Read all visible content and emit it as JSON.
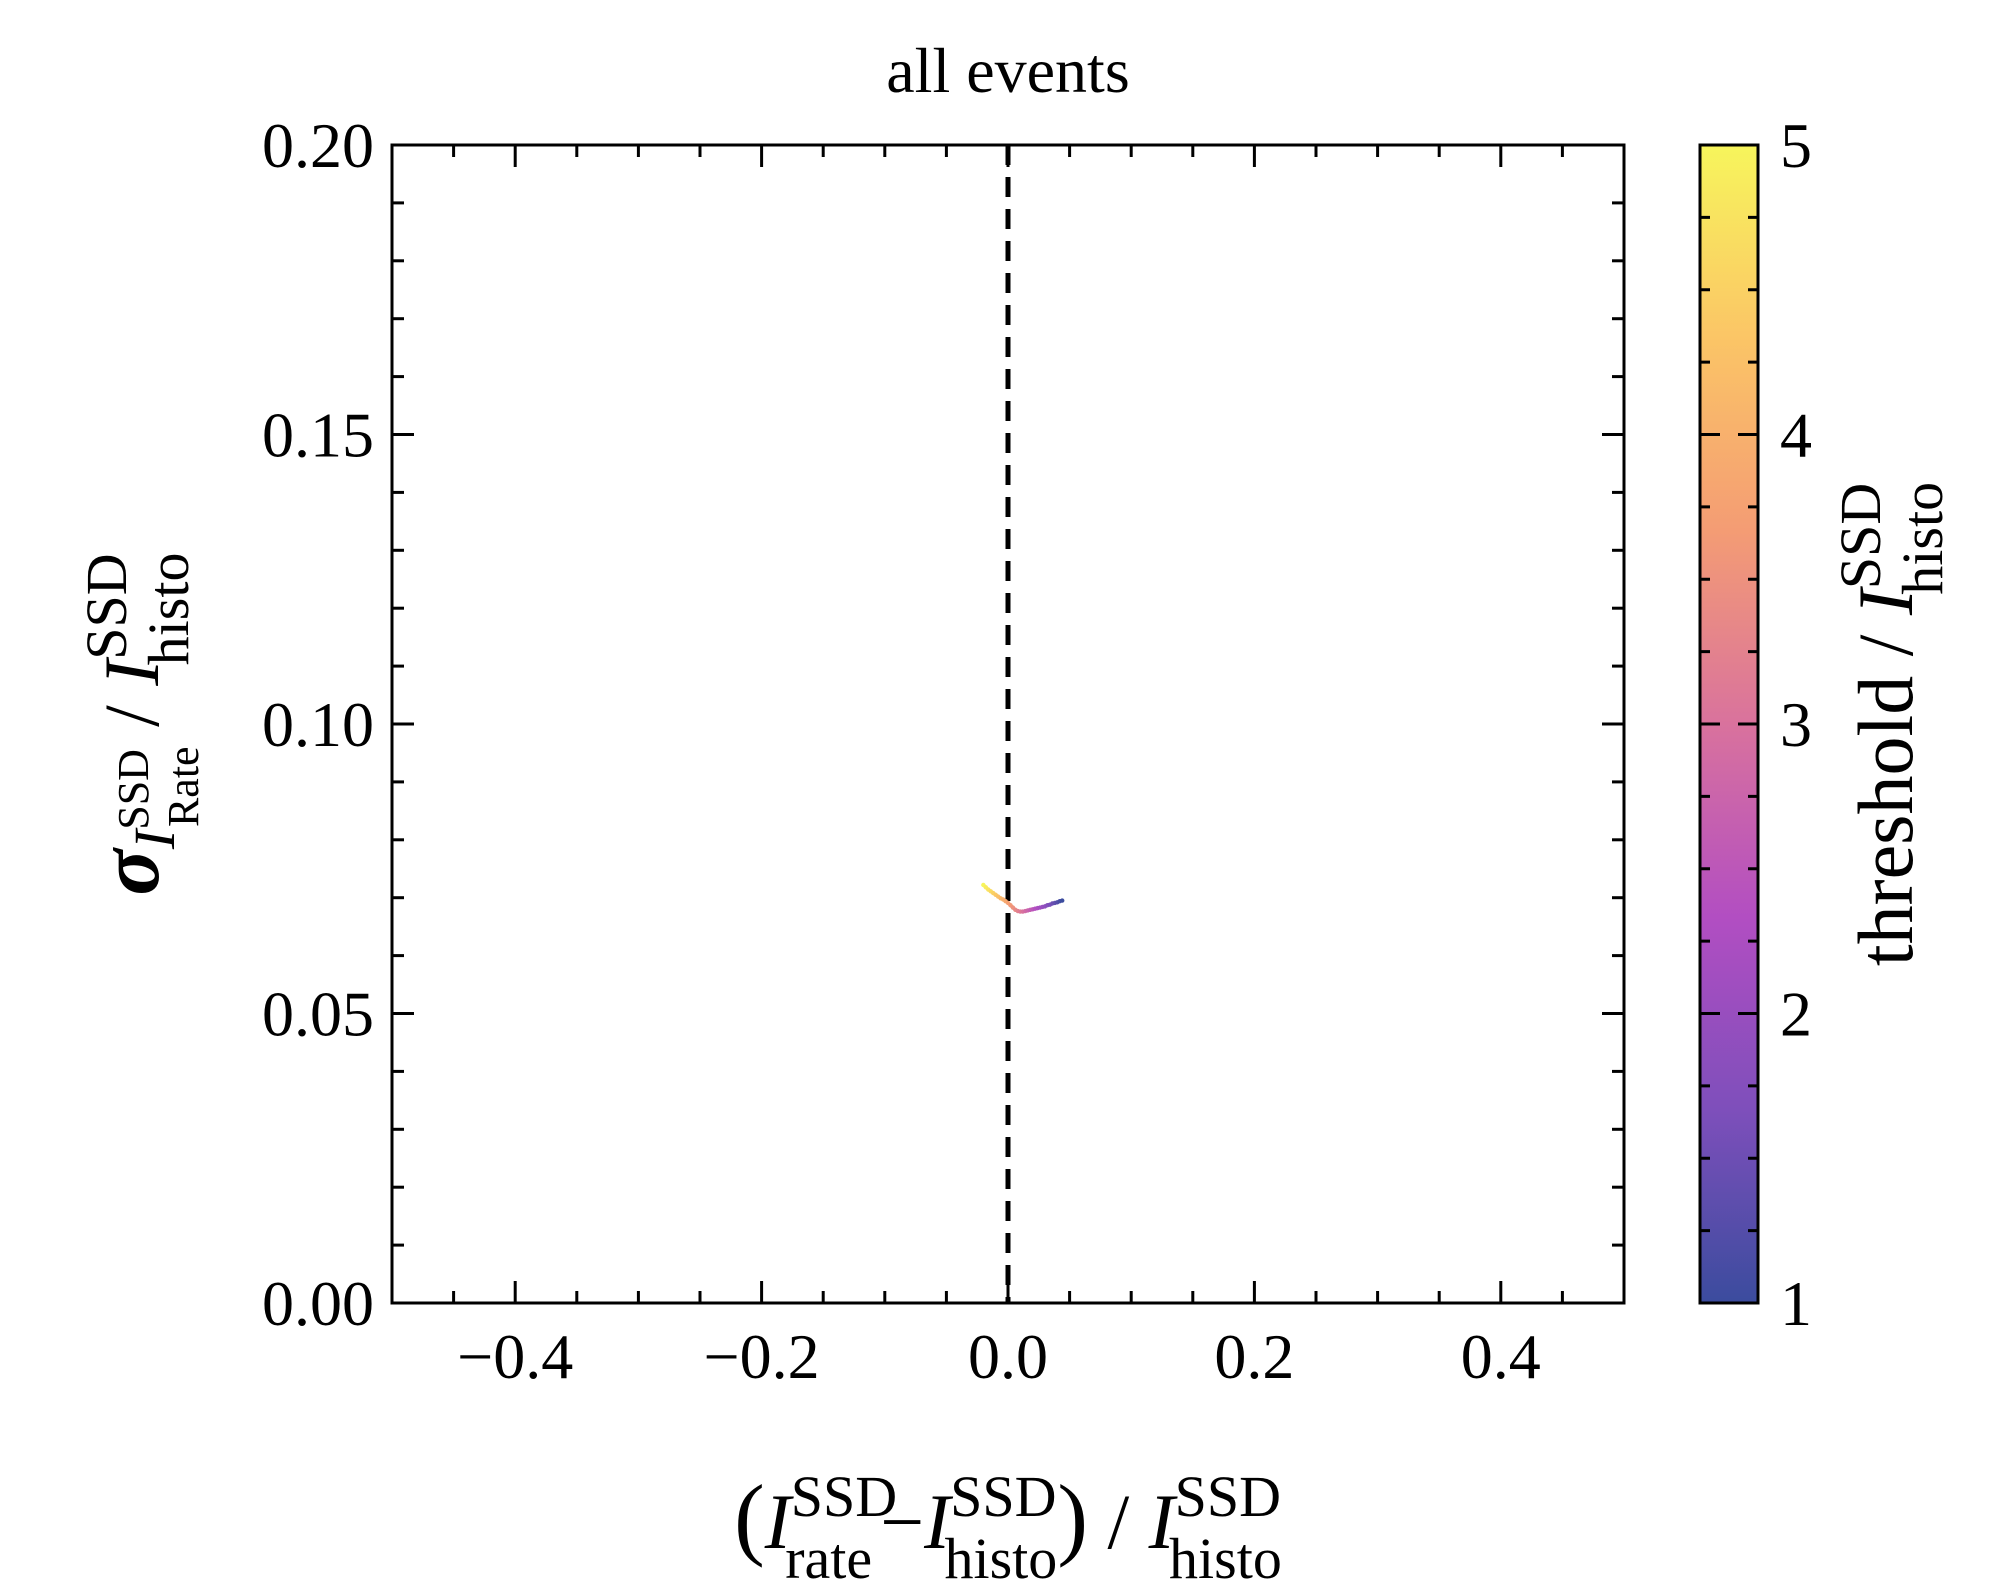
{
  "chart_data": {
    "type": "line",
    "title": "all events",
    "xlabel": {
      "open": "(",
      "a_sym": "I",
      "a_sup": "SSD",
      "a_sub": "rate",
      "minus": "−",
      "b_sym": "I",
      "b_sup": "SSD",
      "b_sub": "histo",
      "close": ")",
      "slash": " / ",
      "c_sym": "I",
      "c_sup": "SSD",
      "c_sub": "histo"
    },
    "ylabel": {
      "sigma": "σ",
      "i_sym": "I",
      "i_sup": "SSD",
      "i_sub": "Rate",
      "slash": " / ",
      "d_sym": "I",
      "d_sup": "SSD",
      "d_sub": "histo"
    },
    "colorbar_label": {
      "prefix": "threshold / ",
      "sym": "I",
      "sup": "SSD",
      "sub": "histo"
    },
    "xlim": [
      -0.5,
      0.5
    ],
    "ylim": [
      0.0,
      0.2
    ],
    "clim": [
      1,
      5
    ],
    "x_ticks": [
      -0.4,
      -0.2,
      0.0,
      0.2,
      0.4
    ],
    "x_tick_labels": [
      "−0.4",
      "−0.2",
      "0.0",
      "0.2",
      "0.4"
    ],
    "y_ticks": [
      0.0,
      0.05,
      0.1,
      0.15,
      0.2
    ],
    "y_tick_labels": [
      "0.00",
      "0.05",
      "0.10",
      "0.15",
      "0.20"
    ],
    "c_ticks": [
      1,
      2,
      3,
      4,
      5
    ],
    "c_tick_labels": [
      "1",
      "2",
      "3",
      "4",
      "5"
    ],
    "reference_line": {
      "x": 0.0,
      "style": "dashed",
      "color": "#000000"
    },
    "colormap": [
      "#3b4c9e",
      "#7e4fbb",
      "#b24ec2",
      "#d9729d",
      "#f49c74",
      "#fbc566",
      "#f7f55c"
    ],
    "grid": false,
    "series": [
      {
        "x": [
          -0.02,
          -0.018,
          -0.016,
          -0.014,
          -0.012,
          -0.01,
          -0.008,
          -0.006,
          -0.004,
          -0.002,
          0.0,
          0.002,
          0.004,
          0.006,
          0.008,
          0.01,
          0.012,
          0.014,
          0.016,
          0.018,
          0.02,
          0.022,
          0.024,
          0.026,
          0.028,
          0.03,
          0.032,
          0.034,
          0.036,
          0.038,
          0.04,
          0.042,
          0.044
        ],
        "y": [
          0.0722,
          0.0718,
          0.0714,
          0.0711,
          0.0708,
          0.0705,
          0.0702,
          0.0699,
          0.0697,
          0.0694,
          0.0691,
          0.0687,
          0.0683,
          0.0679,
          0.0677,
          0.0676,
          0.0676,
          0.0677,
          0.0678,
          0.0679,
          0.068,
          0.0681,
          0.0682,
          0.0683,
          0.0684,
          0.0685,
          0.0687,
          0.0688,
          0.069,
          0.0691,
          0.0692,
          0.0694,
          0.0695
        ],
        "threshold": [
          5.0,
          4.875,
          4.75,
          4.625,
          4.5,
          4.375,
          4.25,
          4.125,
          4.0,
          3.875,
          3.75,
          3.625,
          3.5,
          3.375,
          3.25,
          3.125,
          3.0,
          2.875,
          2.75,
          2.625,
          2.5,
          2.375,
          2.25,
          2.125,
          2.0,
          1.875,
          1.75,
          1.625,
          1.5,
          1.375,
          1.25,
          1.125,
          1.0
        ]
      }
    ]
  }
}
